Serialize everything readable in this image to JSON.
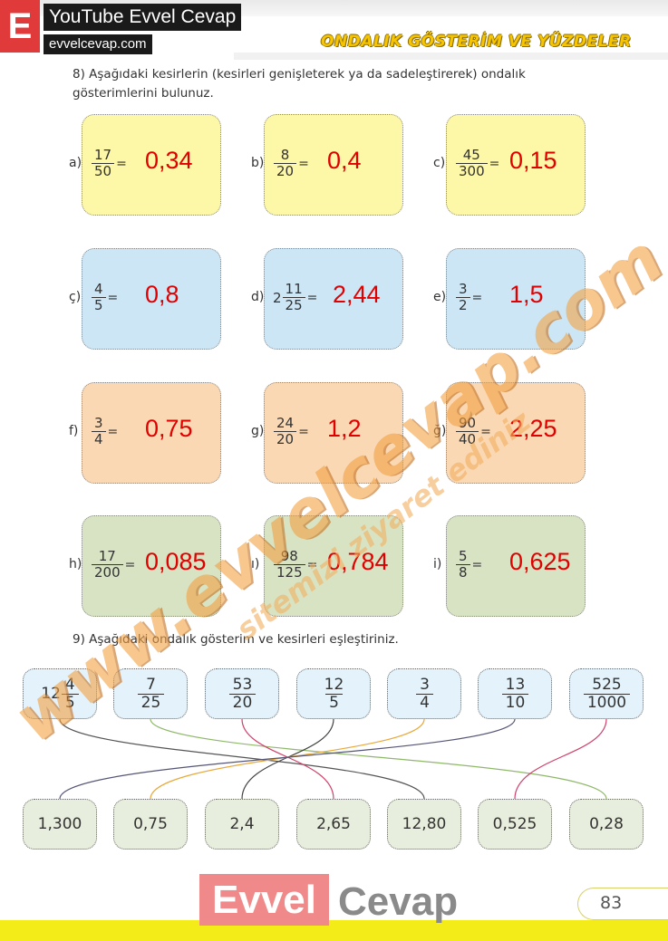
{
  "header": {
    "logo_letter": "E",
    "brand_title": "YouTube Evvel Cevap",
    "brand_url": "evvelcevap.com",
    "section_title": "ONDALIK GÖSTERİM VE YÜZDELER",
    "colors": {
      "logo": "#e03a3a",
      "title": "#f6c400"
    }
  },
  "q8": {
    "text": "8) Aşağıdaki kesirlerin (kesirleri genişleterek ya da sadeleştirerek) ondalık gösterimlerini bulunuz.",
    "items": [
      {
        "label": "a)",
        "whole": "",
        "num": "17",
        "den": "50",
        "eq": "=",
        "answer": "0,34"
      },
      {
        "label": "b)",
        "whole": "",
        "num": "8",
        "den": "20",
        "eq": "=",
        "answer": "0,4"
      },
      {
        "label": "c)",
        "whole": "",
        "num": "45",
        "den": "300",
        "eq": "=",
        "answer": "0,15"
      },
      {
        "label": "ç)",
        "whole": "",
        "num": "4",
        "den": "5",
        "eq": "=",
        "answer": "0,8"
      },
      {
        "label": "d)",
        "whole": "2",
        "num": "11",
        "den": "25",
        "eq": "=",
        "answer": "2,44"
      },
      {
        "label": "e)",
        "whole": "",
        "num": "3",
        "den": "2",
        "eq": "=",
        "answer": "1,5"
      },
      {
        "label": "f)",
        "whole": "",
        "num": "3",
        "den": "4",
        "eq": "=",
        "answer": "0,75"
      },
      {
        "label": "g)",
        "whole": "",
        "num": "24",
        "den": "20",
        "eq": "=",
        "answer": "1,2"
      },
      {
        "label": "ğ)",
        "whole": "",
        "num": "90",
        "den": "40",
        "eq": "=",
        "answer": "2,25"
      },
      {
        "label": "h)",
        "whole": "",
        "num": "17",
        "den": "200",
        "eq": "=",
        "answer": "0,085"
      },
      {
        "label": "ı)",
        "whole": "",
        "num": "98",
        "den": "125",
        "eq": "=",
        "answer": "0,784"
      },
      {
        "label": "i)",
        "whole": "",
        "num": "5",
        "den": "8",
        "eq": "=",
        "answer": "0,625"
      }
    ]
  },
  "q9": {
    "text": "9) Aşağıdaki ondalık gösterim ve kesirleri eşleştiriniz.",
    "fractions": [
      {
        "whole": "12",
        "num": "4",
        "den": "5"
      },
      {
        "whole": "",
        "num": "7",
        "den": "25"
      },
      {
        "whole": "",
        "num": "53",
        "den": "20"
      },
      {
        "whole": "",
        "num": "12",
        "den": "5"
      },
      {
        "whole": "",
        "num": "3",
        "den": "4"
      },
      {
        "whole": "",
        "num": "13",
        "den": "10"
      },
      {
        "whole": "",
        "num": "525",
        "den": "1000"
      }
    ],
    "decimals": [
      "1,300",
      "0,75",
      "2,4",
      "2,65",
      "12,80",
      "0,525",
      "0,28"
    ],
    "matches": [
      {
        "from": 0,
        "to": 4,
        "color": "#555555"
      },
      {
        "from": 1,
        "to": 6,
        "color": "#8fb86a"
      },
      {
        "from": 2,
        "to": 3,
        "color": "#d0406a"
      },
      {
        "from": 3,
        "to": 2,
        "color": "#444444"
      },
      {
        "from": 4,
        "to": 1,
        "color": "#e8a93a"
      },
      {
        "from": 5,
        "to": 0,
        "color": "#555577"
      },
      {
        "from": 6,
        "to": 5,
        "color": "#d0406a"
      }
    ]
  },
  "watermark": {
    "main": "www.evvelcevap.com",
    "sub": "sitemizi ziyaret ediniz"
  },
  "footer": {
    "brand_left": "Evvel",
    "brand_right": "Cevap",
    "page_number": "83"
  }
}
